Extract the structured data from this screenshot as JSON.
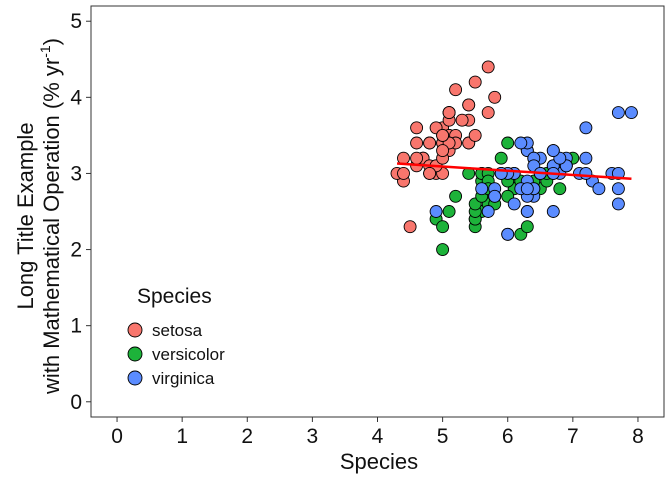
{
  "chart_data": {
    "type": "scatter",
    "title": "",
    "xlabel": "Species",
    "ylabel_line1": "Long Title Example",
    "ylabel_line2_prefix": "with Mathematical Operation (% yr",
    "ylabel_line2_sup": "-1",
    "ylabel_line2_suffix": ")",
    "xlim": [
      -0.4,
      8.4
    ],
    "ylim": [
      -0.2,
      5.2
    ],
    "x_ticks": [
      0,
      1,
      2,
      3,
      4,
      5,
      6,
      7,
      8
    ],
    "y_ticks": [
      0,
      1,
      2,
      3,
      4,
      5
    ],
    "grid": false,
    "legend": {
      "title": "Species",
      "placement": "bottom-left",
      "entries": [
        "setosa",
        "versicolor",
        "virginica"
      ]
    },
    "colors": {
      "setosa": "#F8766D",
      "versicolor": "#1DB33A",
      "virginica": "#5B8CFF",
      "trend": "#FF0000",
      "point_stroke": "#000000"
    },
    "series": [
      {
        "name": "setosa",
        "points": [
          [
            5.1,
            3.5
          ],
          [
            4.9,
            3.0
          ],
          [
            4.7,
            3.2
          ],
          [
            4.6,
            3.1
          ],
          [
            5.0,
            3.6
          ],
          [
            5.4,
            3.9
          ],
          [
            4.6,
            3.4
          ],
          [
            5.0,
            3.4
          ],
          [
            4.4,
            2.9
          ],
          [
            4.9,
            3.1
          ],
          [
            5.4,
            3.7
          ],
          [
            4.8,
            3.4
          ],
          [
            4.8,
            3.0
          ],
          [
            4.3,
            3.0
          ],
          [
            5.8,
            4.0
          ],
          [
            5.7,
            4.4
          ],
          [
            5.4,
            3.9
          ],
          [
            5.1,
            3.5
          ],
          [
            5.7,
            3.8
          ],
          [
            5.1,
            3.8
          ],
          [
            5.4,
            3.4
          ],
          [
            5.1,
            3.7
          ],
          [
            4.6,
            3.6
          ],
          [
            5.1,
            3.3
          ],
          [
            4.8,
            3.4
          ],
          [
            5.0,
            3.0
          ],
          [
            5.0,
            3.4
          ],
          [
            5.2,
            3.5
          ],
          [
            5.2,
            3.4
          ],
          [
            4.7,
            3.2
          ],
          [
            4.8,
            3.1
          ],
          [
            5.4,
            3.4
          ],
          [
            5.2,
            4.1
          ],
          [
            5.5,
            4.2
          ],
          [
            4.9,
            3.1
          ],
          [
            5.0,
            3.2
          ],
          [
            5.5,
            3.5
          ],
          [
            4.9,
            3.6
          ],
          [
            4.4,
            3.0
          ],
          [
            5.1,
            3.4
          ],
          [
            5.0,
            3.5
          ],
          [
            4.5,
            2.3
          ],
          [
            4.4,
            3.2
          ],
          [
            5.0,
            3.5
          ],
          [
            5.1,
            3.8
          ],
          [
            4.8,
            3.0
          ],
          [
            5.1,
            3.8
          ],
          [
            4.6,
            3.2
          ],
          [
            5.3,
            3.7
          ],
          [
            5.0,
            3.3
          ]
        ]
      },
      {
        "name": "versicolor",
        "points": [
          [
            7.0,
            3.2
          ],
          [
            6.4,
            3.2
          ],
          [
            6.9,
            3.1
          ],
          [
            5.5,
            2.3
          ],
          [
            6.5,
            2.8
          ],
          [
            5.7,
            2.8
          ],
          [
            6.3,
            3.3
          ],
          [
            4.9,
            2.4
          ],
          [
            6.6,
            2.9
          ],
          [
            5.2,
            2.7
          ],
          [
            5.0,
            2.0
          ],
          [
            5.9,
            3.0
          ],
          [
            6.0,
            2.2
          ],
          [
            6.1,
            2.9
          ],
          [
            5.6,
            2.9
          ],
          [
            6.7,
            3.1
          ],
          [
            5.6,
            3.0
          ],
          [
            5.8,
            2.7
          ],
          [
            6.2,
            2.2
          ],
          [
            5.6,
            2.5
          ],
          [
            5.9,
            3.2
          ],
          [
            6.1,
            2.8
          ],
          [
            6.3,
            2.5
          ],
          [
            6.1,
            2.8
          ],
          [
            6.4,
            2.9
          ],
          [
            6.6,
            3.0
          ],
          [
            6.8,
            2.8
          ],
          [
            6.7,
            3.0
          ],
          [
            6.0,
            2.9
          ],
          [
            5.7,
            2.6
          ],
          [
            5.5,
            2.4
          ],
          [
            5.5,
            2.4
          ],
          [
            5.8,
            2.7
          ],
          [
            6.0,
            2.7
          ],
          [
            5.4,
            3.0
          ],
          [
            6.0,
            3.4
          ],
          [
            6.7,
            3.1
          ],
          [
            6.3,
            2.3
          ],
          [
            5.6,
            3.0
          ],
          [
            5.5,
            2.5
          ],
          [
            5.5,
            2.6
          ],
          [
            6.1,
            3.0
          ],
          [
            5.8,
            2.6
          ],
          [
            5.0,
            2.3
          ],
          [
            5.6,
            2.7
          ],
          [
            5.7,
            3.0
          ],
          [
            5.7,
            2.9
          ],
          [
            6.2,
            2.9
          ],
          [
            5.1,
            2.5
          ],
          [
            5.7,
            2.8
          ]
        ]
      },
      {
        "name": "virginica",
        "points": [
          [
            6.3,
            3.3
          ],
          [
            5.8,
            2.7
          ],
          [
            7.1,
            3.0
          ],
          [
            6.3,
            2.9
          ],
          [
            6.5,
            3.0
          ],
          [
            7.6,
            3.0
          ],
          [
            4.9,
            2.5
          ],
          [
            7.3,
            2.9
          ],
          [
            6.7,
            2.5
          ],
          [
            7.2,
            3.6
          ],
          [
            6.5,
            3.2
          ],
          [
            6.4,
            2.7
          ],
          [
            6.8,
            3.0
          ],
          [
            5.7,
            2.5
          ],
          [
            5.8,
            2.8
          ],
          [
            6.4,
            3.2
          ],
          [
            6.5,
            3.0
          ],
          [
            7.7,
            3.8
          ],
          [
            7.7,
            2.6
          ],
          [
            6.0,
            2.2
          ],
          [
            6.9,
            3.2
          ],
          [
            5.6,
            2.8
          ],
          [
            7.7,
            2.8
          ],
          [
            6.3,
            2.7
          ],
          [
            6.7,
            3.3
          ],
          [
            7.2,
            3.2
          ],
          [
            6.2,
            2.8
          ],
          [
            6.1,
            3.0
          ],
          [
            6.4,
            2.8
          ],
          [
            7.2,
            3.0
          ],
          [
            7.4,
            2.8
          ],
          [
            7.9,
            3.8
          ],
          [
            6.4,
            2.8
          ],
          [
            6.3,
            2.8
          ],
          [
            6.1,
            2.6
          ],
          [
            7.7,
            3.0
          ],
          [
            6.3,
            3.4
          ],
          [
            6.4,
            3.1
          ],
          [
            6.0,
            3.0
          ],
          [
            6.9,
            3.1
          ],
          [
            6.7,
            3.1
          ],
          [
            6.9,
            3.1
          ],
          [
            5.8,
            2.7
          ],
          [
            6.8,
            3.2
          ],
          [
            6.7,
            3.3
          ],
          [
            6.7,
            3.0
          ],
          [
            6.3,
            2.5
          ],
          [
            6.5,
            3.0
          ],
          [
            6.2,
            3.4
          ],
          [
            5.9,
            3.0
          ]
        ]
      }
    ],
    "trend_line": {
      "x": [
        4.3,
        7.9
      ],
      "y": [
        3.13,
        2.93
      ]
    }
  }
}
